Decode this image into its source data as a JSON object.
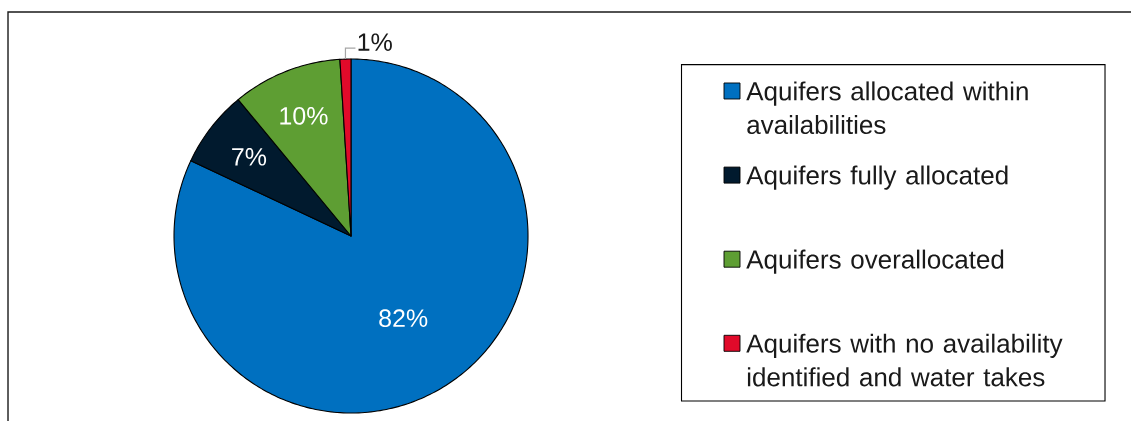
{
  "chart_data": {
    "type": "pie",
    "categories": [
      "Aquifers allocated within availabilities",
      "Aquifers fully allocated",
      "Aquifers overallocated",
      "Aquifers with no availability identified and water takes"
    ],
    "values": [
      82,
      7,
      10,
      1
    ],
    "colors": [
      "#0070C0",
      "#011A2E",
      "#5E9E33",
      "#E10A2A"
    ],
    "value_labels": [
      "82%",
      "7%",
      "10%",
      "1%"
    ],
    "legend": "right"
  }
}
